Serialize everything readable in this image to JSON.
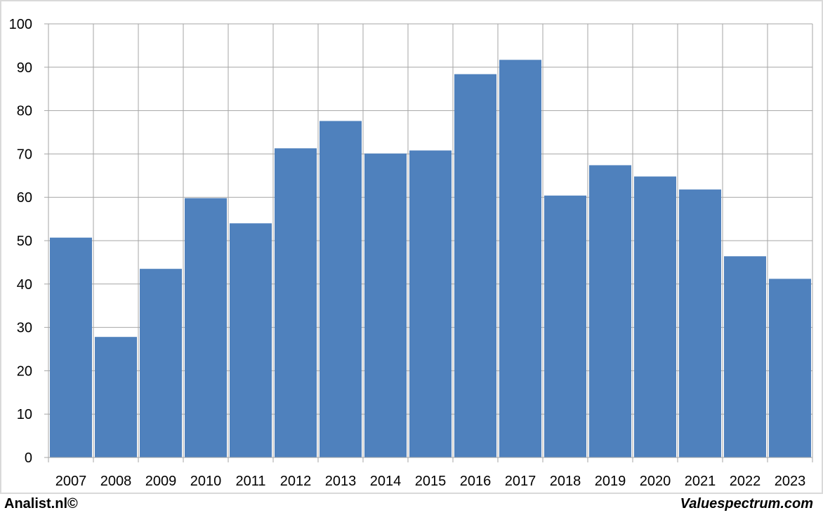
{
  "chart_data": {
    "type": "bar",
    "categories": [
      "2007",
      "2008",
      "2009",
      "2010",
      "2011",
      "2012",
      "2013",
      "2014",
      "2015",
      "2016",
      "2017",
      "2018",
      "2019",
      "2020",
      "2021",
      "2022",
      "2023"
    ],
    "values": [
      50.7,
      27.8,
      43.5,
      59.8,
      54.0,
      71.3,
      77.6,
      70.1,
      70.8,
      88.4,
      91.7,
      60.4,
      67.4,
      64.8,
      61.8,
      46.4,
      41.2
    ],
    "yticks": [
      0,
      10,
      20,
      30,
      40,
      50,
      60,
      70,
      80,
      90,
      100
    ],
    "ylim": [
      0,
      100
    ],
    "grid": true,
    "title": "",
    "xlabel": "",
    "ylabel": "",
    "bar_color": "#4f81bd",
    "grid_color": "#a6a6a6"
  },
  "footer": {
    "left": "Analist.nl©",
    "right": "Valuespectrum.com"
  }
}
